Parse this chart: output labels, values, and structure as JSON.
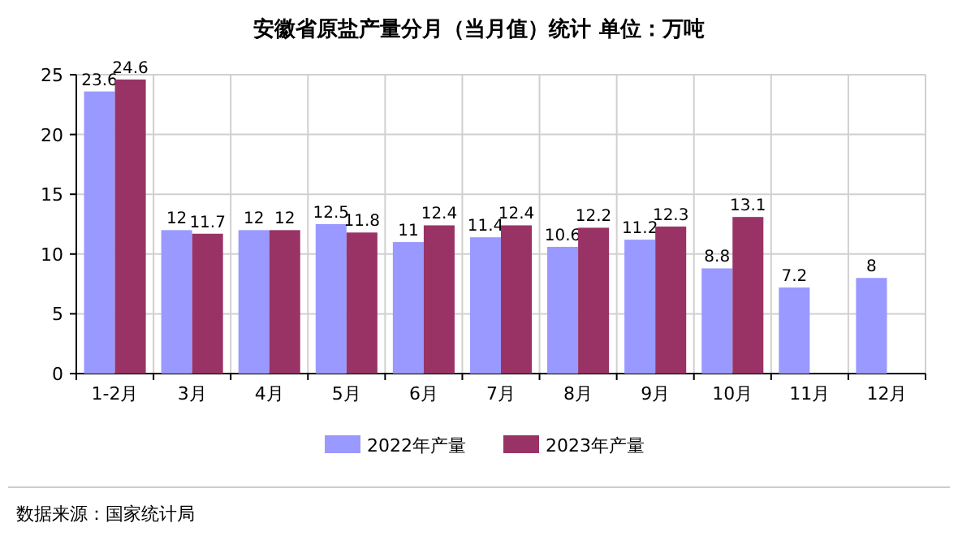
{
  "chart_data": {
    "type": "bar",
    "title": "安徽省原盐产量分月（当月值）统计  单位：万吨",
    "categories": [
      "1-2月",
      "3月",
      "4月",
      "5月",
      "6月",
      "7月",
      "8月",
      "9月",
      "10月",
      "11月",
      "12月"
    ],
    "series": [
      {
        "name": "2022年产量",
        "color": "#9999ff",
        "values": [
          23.6,
          12,
          12,
          12.5,
          11,
          11.4,
          10.6,
          11.2,
          8.8,
          7.2,
          8
        ]
      },
      {
        "name": "2023年产量",
        "color": "#993366",
        "values": [
          24.6,
          11.7,
          12,
          11.8,
          12.4,
          12.4,
          12.2,
          12.3,
          13.1,
          null,
          null
        ]
      }
    ],
    "ylim": [
      0,
      25
    ],
    "yticks": [
      0,
      5,
      10,
      15,
      20,
      25
    ],
    "grid": true,
    "legend": "bottom",
    "data_labels": true,
    "annotations": [
      "数据来源：国家统计局"
    ]
  }
}
